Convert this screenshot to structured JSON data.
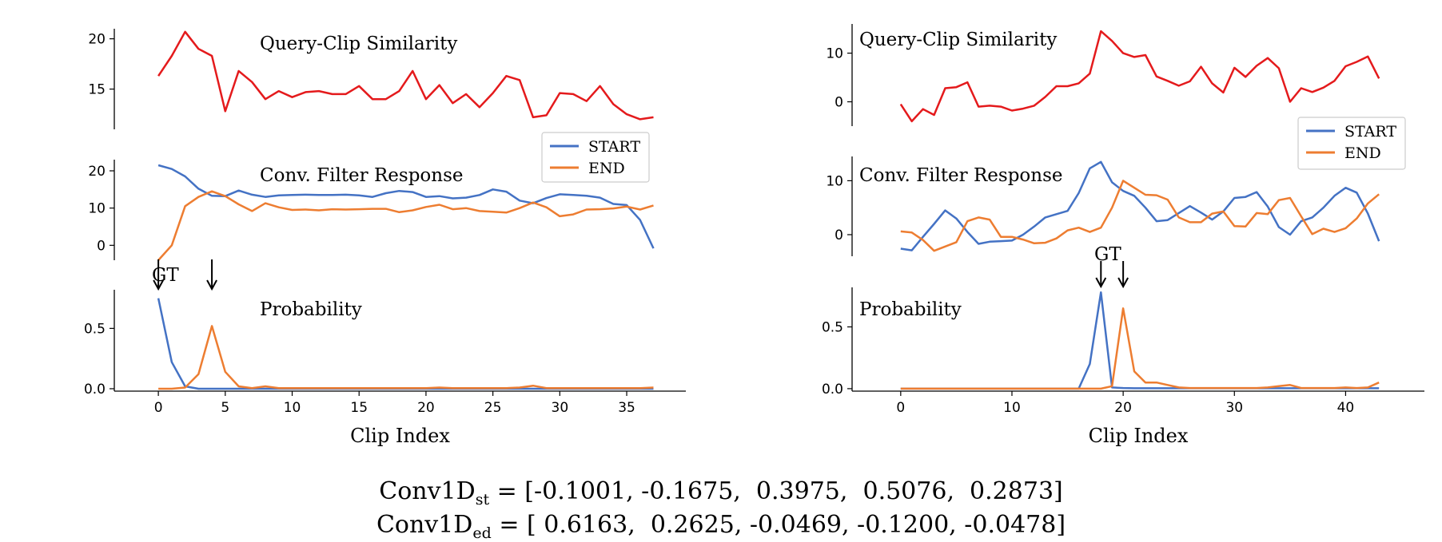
{
  "colors": {
    "similarity": "#e41a1c",
    "start": "#4472c4",
    "end": "#ed7d31"
  },
  "formulas": {
    "st_name": "Conv1D",
    "st_sub": "st",
    "st_values": "= [-0.1001, -0.1675,  0.3975,  0.5076,  0.2873]",
    "ed_name": "Conv1D",
    "ed_sub": "ed",
    "ed_values": "= [ 0.6163,  0.2625, -0.0469, -0.1200, -0.0478]"
  },
  "chart_data": [
    {
      "type": "line",
      "xlabel": "Clip Index",
      "x_ticks": [
        0,
        5,
        10,
        15,
        20,
        25,
        30,
        35
      ],
      "xlim": [
        -1.5,
        39
      ],
      "gt_label": "GT",
      "gt_markers": [
        0,
        4
      ],
      "panels": [
        {
          "title": "Query-Clip Similarity",
          "ylim": [
            11,
            21
          ],
          "y_ticks": [
            15,
            20
          ],
          "series": [
            {
              "color_key": "similarity",
              "values": [
                16.3,
                18.3,
                20.7,
                19,
                18.3,
                12.8,
                16.8,
                15.7,
                14,
                14.8,
                14.2,
                14.7,
                14.8,
                14.5,
                14.5,
                15.3,
                14,
                14,
                14.8,
                16.8,
                14,
                15.4,
                13.6,
                14.5,
                13.2,
                14.6,
                16.3,
                15.9,
                12.2,
                12.4,
                14.6,
                14.5,
                13.8,
                15.3,
                13.5,
                12.5,
                12,
                12.2
              ]
            }
          ]
        },
        {
          "title": "Conv. Filter Response",
          "ylim": [
            -4,
            23
          ],
          "y_ticks": [
            0,
            10,
            20
          ],
          "legend": [
            "START",
            "END"
          ],
          "series": [
            {
              "name": "START",
              "color_key": "start",
              "values": [
                21.5,
                20.5,
                18.5,
                15.2,
                13.3,
                13.2,
                14.7,
                13.6,
                13,
                13.4,
                13.5,
                13.6,
                13.5,
                13.5,
                13.6,
                13.4,
                13,
                14,
                14.6,
                14.3,
                13,
                13.2,
                12.6,
                12.8,
                13.5,
                15,
                14.4,
                12,
                11.3,
                12.7,
                13.7,
                13.5,
                13.3,
                12.8,
                11.1,
                10.8,
                6.8,
                -0.8
              ]
            },
            {
              "name": "END",
              "color_key": "end",
              "values": [
                -4,
                0,
                10.5,
                13,
                14.5,
                13.2,
                11,
                9.2,
                11.3,
                10.2,
                9.5,
                9.6,
                9.4,
                9.7,
                9.6,
                9.7,
                9.8,
                9.8,
                8.9,
                9.4,
                10.3,
                10.9,
                9.7,
                10,
                9.2,
                9,
                8.8,
                10,
                11.5,
                10.2,
                7.8,
                8.3,
                9.6,
                9.7,
                9.9,
                10.4,
                9.6,
                10.7
              ]
            }
          ]
        },
        {
          "title": "Probability",
          "ylim": [
            -0.02,
            0.82
          ],
          "y_ticks": [
            0.0,
            0.5
          ],
          "tick_labels": [
            "0.0",
            "0.5"
          ],
          "series": [
            {
              "name": "START",
              "color_key": "start",
              "values": [
                0.75,
                0.22,
                0.02,
                0,
                0,
                0,
                0,
                0,
                0,
                0,
                0,
                0,
                0,
                0,
                0,
                0,
                0,
                0,
                0,
                0,
                0,
                0,
                0,
                0,
                0,
                0,
                0,
                0,
                0,
                0,
                0,
                0,
                0,
                0,
                0,
                0,
                0,
                0
              ]
            },
            {
              "name": "END",
              "color_key": "end",
              "values": [
                0,
                0,
                0.01,
                0.12,
                0.52,
                0.14,
                0.02,
                0.005,
                0.02,
                0.005,
                0.005,
                0.005,
                0.005,
                0.005,
                0.005,
                0.005,
                0.005,
                0.005,
                0.005,
                0.005,
                0.005,
                0.01,
                0.005,
                0.005,
                0.005,
                0.005,
                0.005,
                0.01,
                0.025,
                0.005,
                0.005,
                0.005,
                0.005,
                0.005,
                0.005,
                0.005,
                0.005,
                0.01
              ]
            }
          ]
        }
      ]
    },
    {
      "type": "line",
      "xlabel": "Clip Index",
      "x_ticks": [
        0,
        10,
        20,
        30,
        40
      ],
      "xlim": [
        -2,
        45
      ],
      "gt_label": "GT",
      "gt_markers": [
        18,
        20
      ],
      "panels": [
        {
          "title": "Query-Clip Similarity",
          "ylim": [
            -5,
            16
          ],
          "y_ticks": [
            0,
            10
          ],
          "series": [
            {
              "color_key": "similarity",
              "values": [
                -0.5,
                -4,
                -1.5,
                -2.7,
                2.8,
                3,
                4,
                -1,
                -0.8,
                -1,
                -1.8,
                -1.4,
                -0.8,
                1,
                3.2,
                3.2,
                3.8,
                5.8,
                14.5,
                12.5,
                10,
                9.2,
                9.6,
                5.2,
                4.3,
                3.3,
                4.2,
                7.2,
                3.8,
                1.9,
                7,
                5.1,
                7.4,
                9,
                6.9,
                0,
                2.8,
                2,
                2.9,
                4.3,
                7.3,
                8.2,
                9.3,
                4.8
              ]
            }
          ]
        },
        {
          "title": "Conv. Filter Response",
          "ylim": [
            -4,
            14.5
          ],
          "y_ticks": [
            0,
            10
          ],
          "legend": [
            "START",
            "END"
          ],
          "series": [
            {
              "name": "START",
              "color_key": "start",
              "values": [
                -2.6,
                -2.9,
                -0.4,
                2,
                4.5,
                3,
                0.5,
                -1.7,
                -1.3,
                -1.2,
                -1.1,
                0,
                1.5,
                3.2,
                3.8,
                4.4,
                7.7,
                12.3,
                13.5,
                9.7,
                8.1,
                7.2,
                5,
                2.5,
                2.7,
                4,
                5.3,
                4.1,
                2.8,
                4.3,
                6.8,
                7,
                7.9,
                5.2,
                1.4,
                0,
                2.5,
                3.2,
                5,
                7.2,
                8.7,
                7.8,
                3.9,
                -1.2
              ]
            },
            {
              "name": "END",
              "color_key": "end",
              "values": [
                0.6,
                0.4,
                -1,
                -3,
                -2.2,
                -1.4,
                2.5,
                3.2,
                2.8,
                -0.4,
                -0.4,
                -0.9,
                -1.6,
                -1.5,
                -0.7,
                0.8,
                1.3,
                0.5,
                1.3,
                5,
                10,
                8.7,
                7.4,
                7.3,
                6.5,
                3.2,
                2.3,
                2.3,
                3.9,
                4.3,
                1.6,
                1.5,
                4,
                3.8,
                6.4,
                6.8,
                3.4,
                0.1,
                1.1,
                0.5,
                1.2,
                3,
                5.8,
                7.5
              ]
            }
          ]
        },
        {
          "title": "Probability",
          "ylim": [
            -0.02,
            0.82
          ],
          "y_ticks": [
            0.0,
            0.5
          ],
          "tick_labels": [
            "0.0",
            "0.5"
          ],
          "series": [
            {
              "name": "START",
              "color_key": "start",
              "values": [
                0,
                0,
                0,
                0,
                0,
                0,
                0,
                0,
                0,
                0,
                0,
                0,
                0,
                0,
                0,
                0,
                0,
                0.2,
                0.78,
                0.01,
                0.005,
                0.003,
                0.003,
                0.003,
                0.003,
                0.003,
                0.003,
                0.003,
                0.003,
                0.003,
                0.003,
                0.003,
                0.003,
                0.003,
                0.003,
                0.003,
                0.003,
                0.003,
                0.003,
                0.003,
                0.003,
                0.003,
                0.003,
                0.003
              ]
            },
            {
              "name": "END",
              "color_key": "end",
              "values": [
                0,
                0,
                0,
                0,
                0,
                0,
                0,
                0,
                0,
                0,
                0,
                0,
                0,
                0,
                0,
                0,
                0,
                0,
                0,
                0.02,
                0.65,
                0.14,
                0.05,
                0.05,
                0.03,
                0.01,
                0.005,
                0.005,
                0.005,
                0.005,
                0.005,
                0.005,
                0.005,
                0.01,
                0.02,
                0.03,
                0.005,
                0.005,
                0.005,
                0.005,
                0.01,
                0.005,
                0.01,
                0.05
              ]
            }
          ]
        }
      ]
    }
  ]
}
